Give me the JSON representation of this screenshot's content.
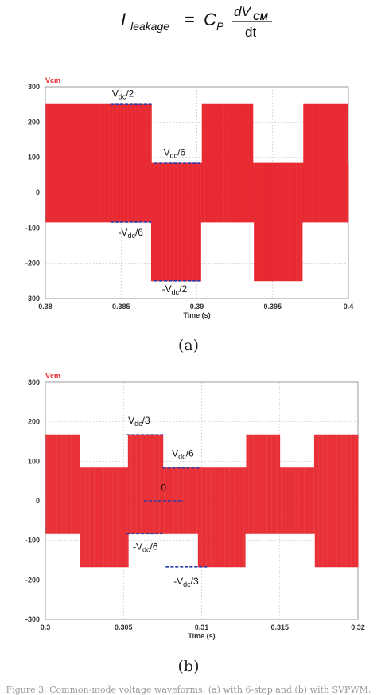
{
  "formula": {
    "lhs": "I",
    "lhs_sub": "leakage",
    "eq": "=",
    "coef": "C",
    "coef_sub": "P",
    "num": "dV",
    "num_sub": "CM",
    "den": "dt"
  },
  "captions": {
    "a": "(a)",
    "b": "(b)"
  },
  "footer_text": "Figure 3. Common-mode voltage waveforms: (a) with 6-step and (b) with SVPWM.",
  "colors": {
    "trace": "#e8242c",
    "annotation": "#2b3aa8",
    "frame": "#999999"
  },
  "chart_data": [
    {
      "type": "line",
      "panel": "a",
      "ylabel": "Vcm",
      "xlabel": "Time (s)",
      "xlim": [
        0.38,
        0.4
      ],
      "ylim": [
        -300,
        300
      ],
      "xticks": [
        "0.38",
        "0.385",
        "0.39",
        "0.395",
        "0.4"
      ],
      "yticks": [
        "300",
        "200",
        "100",
        "0",
        "-100",
        "-200",
        "-300"
      ],
      "grid": true,
      "series": [
        {
          "levels": [
            250,
            83.3,
            -83.3,
            -250
          ],
          "x": [
            0.38,
            0.383,
            0.387,
            0.3903,
            0.3937,
            0.397,
            0.4
          ],
          "upper": [
            250,
            250,
            83.3,
            250,
            83.3,
            250,
            83.3
          ],
          "lower": [
            -83.3,
            -83.3,
            -250,
            -83.3,
            -250,
            -83.3,
            -250
          ]
        }
      ],
      "annotations": [
        {
          "x0": 0.3843,
          "x1": 0.387,
          "y": 250,
          "label": "V",
          "sub": "dc",
          "suffix": "/2",
          "lx": 0.3844,
          "ly": 272
        },
        {
          "x0": 0.3872,
          "x1": 0.3903,
          "y": 83.3,
          "label": "V",
          "sub": "dc",
          "suffix": "/6",
          "lx": 0.3878,
          "ly": 105
        },
        {
          "x0": 0.3843,
          "x1": 0.387,
          "y": -83.3,
          "label": "-V",
          "sub": "dc",
          "suffix": "/6",
          "lx": 0.3848,
          "ly": -122
        },
        {
          "x0": 0.3872,
          "x1": 0.3903,
          "y": -250,
          "label": "-V",
          "sub": "dc",
          "suffix": "/2",
          "lx": 0.3877,
          "ly": -282
        }
      ]
    },
    {
      "type": "line",
      "panel": "b",
      "ylabel": "Vcm",
      "xlabel": "Time (s)",
      "xlim": [
        0.3,
        0.32
      ],
      "ylim": [
        -300,
        300
      ],
      "xticks": [
        "0.3",
        "0.305",
        "0.31",
        "0.315",
        "0.32"
      ],
      "yticks": [
        "300",
        "200",
        "100",
        "0",
        "-100",
        "-200",
        "-300"
      ],
      "grid": true,
      "series": [
        {
          "levels": [
            166.7,
            83.3,
            0,
            -83.3,
            -166.7
          ],
          "x": [
            0.3,
            0.3022,
            0.3053,
            0.3075,
            0.3097,
            0.3128,
            0.315,
            0.3172,
            0.3203
          ],
          "upper": [
            166.7,
            83.3,
            166.7,
            83.3,
            83.3,
            166.7,
            83.3,
            166.7,
            83.3
          ],
          "lower": [
            -83.3,
            -166.7,
            -83.3,
            -83.3,
            -166.7,
            -83.3,
            -83.3,
            -166.7,
            -83.3
          ]
        }
      ],
      "annotations": [
        {
          "x0": 0.3052,
          "x1": 0.3077,
          "y": 166.7,
          "label": "V",
          "sub": "dc",
          "suffix": "/3",
          "lx": 0.3053,
          "ly": 195
        },
        {
          "x0": 0.3075,
          "x1": 0.3099,
          "y": 83.3,
          "label": "V",
          "sub": "dc",
          "suffix": "/6",
          "lx": 0.3081,
          "ly": 112
        },
        {
          "x0": 0.3063,
          "x1": 0.3088,
          "y": 0,
          "label": "0",
          "sub": "",
          "suffix": "",
          "lx": 0.3074,
          "ly": 25
        },
        {
          "x0": 0.3052,
          "x1": 0.3075,
          "y": -83.3,
          "label": "-V",
          "sub": "dc",
          "suffix": "/6",
          "lx": 0.3056,
          "ly": -124
        },
        {
          "x0": 0.3077,
          "x1": 0.3104,
          "y": -166.7,
          "label": "-V",
          "sub": "dc",
          "suffix": "/3",
          "lx": 0.3082,
          "ly": -211
        }
      ]
    }
  ]
}
